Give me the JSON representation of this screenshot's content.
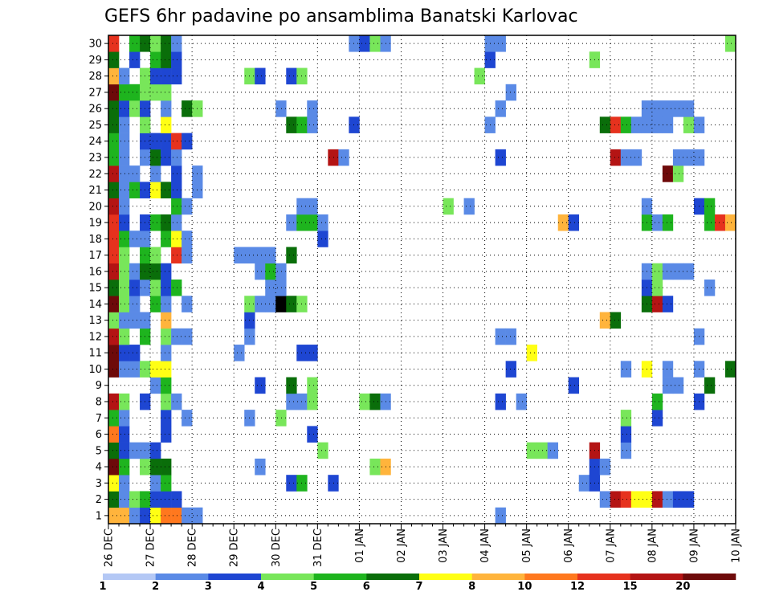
{
  "chart_data": {
    "type": "heatmap",
    "title": "GEFS 6hr padavine po ansamblima Banatski Karlovac",
    "y_members": [
      "1",
      "2",
      "3",
      "4",
      "5",
      "6",
      "7",
      "8",
      "9",
      "10",
      "11",
      "12",
      "13",
      "14",
      "15",
      "16",
      "17",
      "18",
      "19",
      "20",
      "21",
      "22",
      "23",
      "24",
      "25",
      "26",
      "27",
      "28",
      "29",
      "30"
    ],
    "x_tick_labels": [
      "26 DEC",
      "27 DEC",
      "28 DEC",
      "29 DEC",
      "30 DEC",
      "31 DEC",
      "01 JAN",
      "02 JAN",
      "03 JAN",
      "04 JAN",
      "05 JAN",
      "06 JAN",
      "07 JAN",
      "08 JAN",
      "09 JAN",
      "10 JAN"
    ],
    "steps_per_day": 4,
    "total_steps": 60,
    "grid": true,
    "colorbar": {
      "tick_labels": [
        "1",
        "2",
        "3",
        "4",
        "5",
        "6",
        "7",
        "8",
        "10",
        "12",
        "15",
        "20"
      ],
      "colors": [
        "#b4c8f5",
        "#5a8ae6",
        "#1e46d2",
        "#78e65a",
        "#1eb41e",
        "#0a6e0a",
        "#ffff14",
        "#ffb43c",
        "#ff781e",
        "#e6321e",
        "#b41414",
        "#6e0a0a"
      ]
    },
    "cells": [
      [
        1,
        0,
        7
      ],
      [
        1,
        1,
        7
      ],
      [
        1,
        2,
        1
      ],
      [
        1,
        3,
        2
      ],
      [
        1,
        4,
        6
      ],
      [
        1,
        5,
        8
      ],
      [
        1,
        6,
        8
      ],
      [
        1,
        7,
        1
      ],
      [
        1,
        8,
        1
      ],
      [
        1,
        37,
        1
      ],
      [
        2,
        0,
        5
      ],
      [
        2,
        1,
        1
      ],
      [
        2,
        2,
        3
      ],
      [
        2,
        3,
        4
      ],
      [
        2,
        4,
        2
      ],
      [
        2,
        5,
        2
      ],
      [
        2,
        6,
        2
      ],
      [
        2,
        47,
        1
      ],
      [
        2,
        48,
        10
      ],
      [
        2,
        49,
        9
      ],
      [
        2,
        50,
        6
      ],
      [
        2,
        51,
        6
      ],
      [
        2,
        52,
        10
      ],
      [
        2,
        53,
        1
      ],
      [
        2,
        54,
        2
      ],
      [
        2,
        55,
        2
      ],
      [
        3,
        0,
        6
      ],
      [
        3,
        1,
        1
      ],
      [
        3,
        4,
        1
      ],
      [
        3,
        5,
        4
      ],
      [
        3,
        17,
        2
      ],
      [
        3,
        18,
        4
      ],
      [
        3,
        21,
        2
      ],
      [
        3,
        45,
        1
      ],
      [
        3,
        46,
        2
      ],
      [
        4,
        0,
        11
      ],
      [
        4,
        1,
        4
      ],
      [
        4,
        3,
        3
      ],
      [
        4,
        4,
        5
      ],
      [
        4,
        5,
        5
      ],
      [
        4,
        14,
        1
      ],
      [
        4,
        25,
        3
      ],
      [
        4,
        26,
        7
      ],
      [
        4,
        46,
        2
      ],
      [
        4,
        47,
        1
      ],
      [
        4,
        60,
        4
      ],
      [
        5,
        0,
        5
      ],
      [
        5,
        1,
        2
      ],
      [
        5,
        2,
        1
      ],
      [
        5,
        3,
        1
      ],
      [
        5,
        4,
        2
      ],
      [
        5,
        20,
        3
      ],
      [
        5,
        40,
        3
      ],
      [
        5,
        41,
        3
      ],
      [
        5,
        42,
        1
      ],
      [
        5,
        46,
        10
      ],
      [
        5,
        49,
        1
      ],
      [
        6,
        0,
        8
      ],
      [
        6,
        1,
        2
      ],
      [
        6,
        5,
        2
      ],
      [
        6,
        19,
        2
      ],
      [
        6,
        49,
        2
      ],
      [
        7,
        0,
        4
      ],
      [
        7,
        1,
        1
      ],
      [
        7,
        5,
        2
      ],
      [
        7,
        7,
        1
      ],
      [
        7,
        13,
        1
      ],
      [
        7,
        16,
        3
      ],
      [
        7,
        49,
        3
      ],
      [
        7,
        52,
        2
      ],
      [
        8,
        0,
        10
      ],
      [
        8,
        1,
        3
      ],
      [
        8,
        3,
        2
      ],
      [
        8,
        5,
        3
      ],
      [
        8,
        6,
        1
      ],
      [
        8,
        17,
        1
      ],
      [
        8,
        18,
        1
      ],
      [
        8,
        19,
        3
      ],
      [
        8,
        24,
        3
      ],
      [
        8,
        25,
        5
      ],
      [
        8,
        26,
        1
      ],
      [
        8,
        37,
        2
      ],
      [
        8,
        39,
        1
      ],
      [
        8,
        52,
        4
      ],
      [
        8,
        56,
        2
      ],
      [
        9,
        4,
        1
      ],
      [
        9,
        5,
        4
      ],
      [
        9,
        14,
        2
      ],
      [
        9,
        17,
        5
      ],
      [
        9,
        19,
        3
      ],
      [
        9,
        44,
        2
      ],
      [
        9,
        53,
        1
      ],
      [
        9,
        54,
        1
      ],
      [
        9,
        57,
        5
      ],
      [
        10,
        0,
        11
      ],
      [
        10,
        1,
        1
      ],
      [
        10,
        2,
        1
      ],
      [
        10,
        3,
        3
      ],
      [
        10,
        4,
        6
      ],
      [
        10,
        5,
        6
      ],
      [
        10,
        38,
        2
      ],
      [
        10,
        49,
        1
      ],
      [
        10,
        51,
        6
      ],
      [
        10,
        53,
        1
      ],
      [
        10,
        56,
        1
      ],
      [
        10,
        59,
        5
      ],
      [
        10,
        60,
        1
      ],
      [
        11,
        0,
        11
      ],
      [
        11,
        1,
        2
      ],
      [
        11,
        2,
        2
      ],
      [
        11,
        5,
        1
      ],
      [
        11,
        12,
        1
      ],
      [
        11,
        18,
        2
      ],
      [
        11,
        19,
        2
      ],
      [
        11,
        40,
        6
      ],
      [
        12,
        0,
        10
      ],
      [
        12,
        1,
        3
      ],
      [
        12,
        3,
        4
      ],
      [
        12,
        5,
        3
      ],
      [
        12,
        6,
        1
      ],
      [
        12,
        7,
        1
      ],
      [
        12,
        13,
        1
      ],
      [
        12,
        37,
        1
      ],
      [
        12,
        38,
        1
      ],
      [
        12,
        56,
        1
      ],
      [
        13,
        0,
        3
      ],
      [
        13,
        1,
        1
      ],
      [
        13,
        2,
        1
      ],
      [
        13,
        3,
        1
      ],
      [
        13,
        5,
        7
      ],
      [
        13,
        13,
        2
      ],
      [
        13,
        47,
        7
      ],
      [
        13,
        48,
        5
      ],
      [
        14,
        0,
        11
      ],
      [
        14,
        1,
        3
      ],
      [
        14,
        2,
        1
      ],
      [
        14,
        4,
        4
      ],
      [
        14,
        5,
        1
      ],
      [
        14,
        7,
        1
      ],
      [
        14,
        13,
        3
      ],
      [
        14,
        14,
        1
      ],
      [
        14,
        15,
        1
      ],
      [
        14,
        16,
        12
      ],
      [
        14,
        17,
        5
      ],
      [
        14,
        18,
        3
      ],
      [
        14,
        51,
        5
      ],
      [
        14,
        52,
        10
      ],
      [
        14,
        53,
        2
      ],
      [
        15,
        0,
        5
      ],
      [
        15,
        1,
        3
      ],
      [
        15,
        2,
        2
      ],
      [
        15,
        3,
        1
      ],
      [
        15,
        4,
        3
      ],
      [
        15,
        5,
        2
      ],
      [
        15,
        6,
        4
      ],
      [
        15,
        15,
        1
      ],
      [
        15,
        16,
        1
      ],
      [
        15,
        51,
        2
      ],
      [
        15,
        52,
        3
      ],
      [
        15,
        57,
        1
      ],
      [
        16,
        0,
        10
      ],
      [
        16,
        1,
        3
      ],
      [
        16,
        2,
        1
      ],
      [
        16,
        3,
        5
      ],
      [
        16,
        4,
        5
      ],
      [
        16,
        5,
        2
      ],
      [
        16,
        14,
        1
      ],
      [
        16,
        15,
        4
      ],
      [
        16,
        16,
        1
      ],
      [
        16,
        51,
        1
      ],
      [
        16,
        52,
        3
      ],
      [
        16,
        53,
        1
      ],
      [
        16,
        54,
        1
      ],
      [
        16,
        55,
        1
      ],
      [
        17,
        0,
        9
      ],
      [
        17,
        1,
        3
      ],
      [
        17,
        3,
        4
      ],
      [
        17,
        4,
        3
      ],
      [
        17,
        6,
        9
      ],
      [
        17,
        7,
        1
      ],
      [
        17,
        12,
        1
      ],
      [
        17,
        13,
        1
      ],
      [
        17,
        14,
        1
      ],
      [
        17,
        15,
        1
      ],
      [
        17,
        17,
        5
      ],
      [
        18,
        0,
        9
      ],
      [
        18,
        1,
        4
      ],
      [
        18,
        2,
        1
      ],
      [
        18,
        3,
        1
      ],
      [
        18,
        5,
        4
      ],
      [
        18,
        6,
        6
      ],
      [
        18,
        7,
        1
      ],
      [
        18,
        20,
        2
      ],
      [
        19,
        0,
        9
      ],
      [
        19,
        1,
        2
      ],
      [
        19,
        3,
        2
      ],
      [
        19,
        4,
        4
      ],
      [
        19,
        5,
        5
      ],
      [
        19,
        6,
        1
      ],
      [
        19,
        17,
        1
      ],
      [
        19,
        18,
        4
      ],
      [
        19,
        19,
        4
      ],
      [
        19,
        20,
        1
      ],
      [
        19,
        43,
        7
      ],
      [
        19,
        44,
        2
      ],
      [
        19,
        51,
        4
      ],
      [
        19,
        52,
        1
      ],
      [
        19,
        53,
        4
      ],
      [
        19,
        57,
        4
      ],
      [
        19,
        58,
        9
      ],
      [
        19,
        59,
        7
      ],
      [
        19,
        60,
        1
      ],
      [
        20,
        0,
        10
      ],
      [
        20,
        1,
        1
      ],
      [
        20,
        6,
        4
      ],
      [
        20,
        7,
        1
      ],
      [
        20,
        18,
        1
      ],
      [
        20,
        19,
        1
      ],
      [
        20,
        32,
        3
      ],
      [
        20,
        34,
        1
      ],
      [
        20,
        51,
        1
      ],
      [
        20,
        56,
        2
      ],
      [
        20,
        57,
        4
      ],
      [
        21,
        0,
        5
      ],
      [
        21,
        1,
        1
      ],
      [
        21,
        2,
        4
      ],
      [
        21,
        3,
        2
      ],
      [
        21,
        4,
        6
      ],
      [
        21,
        5,
        5
      ],
      [
        21,
        6,
        2
      ],
      [
        21,
        8,
        1
      ],
      [
        22,
        0,
        10
      ],
      [
        22,
        1,
        1
      ],
      [
        22,
        2,
        1
      ],
      [
        22,
        4,
        1
      ],
      [
        22,
        6,
        2
      ],
      [
        22,
        8,
        1
      ],
      [
        22,
        53,
        11
      ],
      [
        22,
        54,
        3
      ],
      [
        23,
        0,
        4
      ],
      [
        23,
        1,
        1
      ],
      [
        23,
        3,
        1
      ],
      [
        23,
        4,
        5
      ],
      [
        23,
        5,
        2
      ],
      [
        23,
        6,
        1
      ],
      [
        23,
        21,
        10
      ],
      [
        23,
        22,
        1
      ],
      [
        23,
        37,
        2
      ],
      [
        23,
        48,
        10
      ],
      [
        23,
        49,
        1
      ],
      [
        23,
        50,
        1
      ],
      [
        23,
        54,
        1
      ],
      [
        23,
        55,
        1
      ],
      [
        23,
        56,
        1
      ],
      [
        24,
        0,
        4
      ],
      [
        24,
        1,
        1
      ],
      [
        24,
        3,
        2
      ],
      [
        24,
        4,
        2
      ],
      [
        24,
        5,
        2
      ],
      [
        24,
        6,
        9
      ],
      [
        24,
        7,
        2
      ],
      [
        25,
        0,
        5
      ],
      [
        25,
        1,
        1
      ],
      [
        25,
        3,
        3
      ],
      [
        25,
        5,
        6
      ],
      [
        25,
        17,
        5
      ],
      [
        25,
        18,
        4
      ],
      [
        25,
        19,
        1
      ],
      [
        25,
        23,
        2
      ],
      [
        25,
        36,
        1
      ],
      [
        25,
        47,
        5
      ],
      [
        25,
        48,
        9
      ],
      [
        25,
        49,
        4
      ],
      [
        25,
        50,
        1
      ],
      [
        25,
        51,
        1
      ],
      [
        25,
        52,
        1
      ],
      [
        25,
        53,
        1
      ],
      [
        25,
        55,
        3
      ],
      [
        25,
        56,
        1
      ],
      [
        26,
        0,
        5
      ],
      [
        26,
        1,
        2
      ],
      [
        26,
        2,
        3
      ],
      [
        26,
        3,
        2
      ],
      [
        26,
        5,
        1
      ],
      [
        26,
        7,
        5
      ],
      [
        26,
        8,
        3
      ],
      [
        26,
        16,
        1
      ],
      [
        26,
        19,
        1
      ],
      [
        26,
        37,
        1
      ],
      [
        26,
        51,
        1
      ],
      [
        26,
        52,
        1
      ],
      [
        26,
        53,
        1
      ],
      [
        26,
        54,
        1
      ],
      [
        26,
        55,
        1
      ],
      [
        27,
        0,
        11
      ],
      [
        27,
        1,
        4
      ],
      [
        27,
        2,
        4
      ],
      [
        27,
        3,
        3
      ],
      [
        27,
        4,
        3
      ],
      [
        27,
        5,
        3
      ],
      [
        27,
        38,
        1
      ],
      [
        28,
        0,
        7
      ],
      [
        28,
        1,
        1
      ],
      [
        28,
        3,
        3
      ],
      [
        28,
        4,
        2
      ],
      [
        28,
        5,
        2
      ],
      [
        28,
        6,
        2
      ],
      [
        28,
        13,
        3
      ],
      [
        28,
        14,
        2
      ],
      [
        28,
        17,
        2
      ],
      [
        28,
        18,
        3
      ],
      [
        28,
        35,
        3
      ],
      [
        29,
        0,
        5
      ],
      [
        29,
        2,
        2
      ],
      [
        29,
        4,
        4
      ],
      [
        29,
        5,
        5
      ],
      [
        29,
        6,
        2
      ],
      [
        29,
        36,
        2
      ],
      [
        29,
        46,
        3
      ],
      [
        30,
        0,
        9
      ],
      [
        30,
        2,
        4
      ],
      [
        30,
        3,
        5
      ],
      [
        30,
        4,
        3
      ],
      [
        30,
        5,
        5
      ],
      [
        30,
        6,
        1
      ],
      [
        30,
        23,
        1
      ],
      [
        30,
        24,
        2
      ],
      [
        30,
        25,
        3
      ],
      [
        30,
        26,
        1
      ],
      [
        30,
        36,
        1
      ],
      [
        30,
        37,
        1
      ],
      [
        30,
        59,
        3
      ]
    ]
  }
}
